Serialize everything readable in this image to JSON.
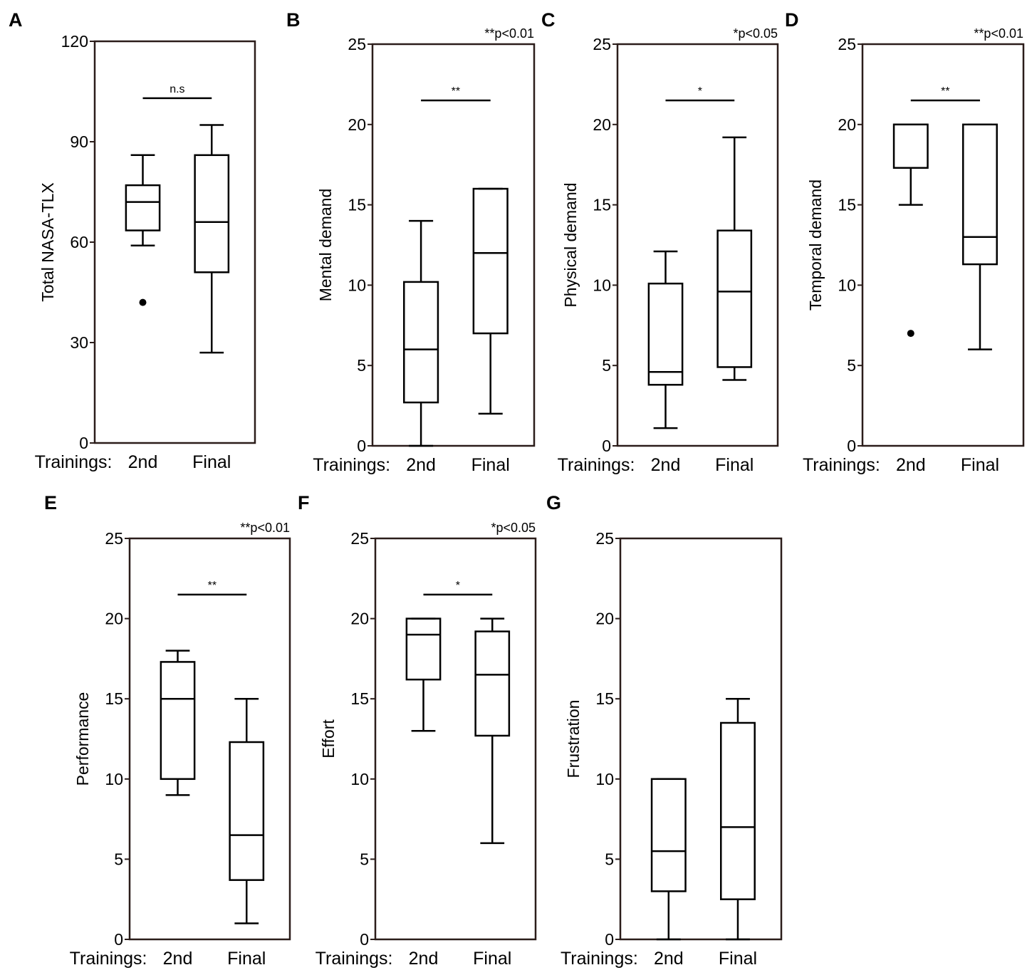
{
  "figure": {
    "x_prefix": "Trainings:",
    "groups": [
      "2nd",
      "Final"
    ]
  },
  "chart_data": [
    {
      "type": "box",
      "panel": "A",
      "ylabel": "Total NASA-TLX",
      "ylim": [
        0,
        120
      ],
      "yticks": [
        0,
        30,
        60,
        90,
        120
      ],
      "note": "",
      "sig": {
        "label": "n.s",
        "y": 103
      },
      "boxes": [
        {
          "name": "2nd",
          "min": 59,
          "q1": 63.5,
          "median": 72,
          "q3": 77,
          "max": 86,
          "outliers": [
            42
          ]
        },
        {
          "name": "Final",
          "min": 27,
          "q1": 51,
          "median": 66,
          "q3": 86,
          "max": 95,
          "outliers": []
        }
      ]
    },
    {
      "type": "box",
      "panel": "B",
      "ylabel": "Mental demand",
      "ylim": [
        0,
        25
      ],
      "yticks": [
        0,
        5,
        10,
        15,
        20,
        25
      ],
      "note": "**p<0.01",
      "sig": {
        "label": "**",
        "y": 21.5
      },
      "boxes": [
        {
          "name": "2nd",
          "min": 0,
          "q1": 2.7,
          "median": 6,
          "q3": 10.2,
          "max": 14,
          "outliers": []
        },
        {
          "name": "Final",
          "min": 2,
          "q1": 7,
          "median": 12,
          "q3": 16,
          "max": 16,
          "outliers": []
        }
      ]
    },
    {
      "type": "box",
      "panel": "C",
      "ylabel": "Physical demand",
      "ylim": [
        0,
        25
      ],
      "yticks": [
        0,
        5,
        10,
        15,
        20,
        25
      ],
      "note": "*p<0.05",
      "sig": {
        "label": "*",
        "y": 21.5
      },
      "boxes": [
        {
          "name": "2nd",
          "min": 1.1,
          "q1": 3.8,
          "median": 4.6,
          "q3": 10.1,
          "max": 12.1,
          "outliers": []
        },
        {
          "name": "Final",
          "min": 4.1,
          "q1": 4.9,
          "median": 9.6,
          "q3": 13.4,
          "max": 19.2,
          "outliers": []
        }
      ]
    },
    {
      "type": "box",
      "panel": "D",
      "ylabel": "Temporal demand",
      "ylim": [
        0,
        25
      ],
      "yticks": [
        0,
        5,
        10,
        15,
        20,
        25
      ],
      "note": "**p<0.01",
      "sig": {
        "label": "**",
        "y": 21.5
      },
      "boxes": [
        {
          "name": "2nd",
          "min": 15,
          "q1": 17.3,
          "median": 20,
          "q3": 20,
          "max": 20,
          "outliers": [
            7
          ]
        },
        {
          "name": "Final",
          "min": 6,
          "q1": 11.3,
          "median": 13,
          "q3": 20,
          "max": 20,
          "outliers": []
        }
      ]
    },
    {
      "type": "box",
      "panel": "E",
      "ylabel": "Performance",
      "ylim": [
        0,
        25
      ],
      "yticks": [
        0,
        5,
        10,
        15,
        20,
        25
      ],
      "note": "**p<0.01",
      "sig": {
        "label": "**",
        "y": 21.5
      },
      "boxes": [
        {
          "name": "2nd",
          "min": 9,
          "q1": 10,
          "median": 15,
          "q3": 17.3,
          "max": 18,
          "outliers": []
        },
        {
          "name": "Final",
          "min": 1,
          "q1": 3.7,
          "median": 6.5,
          "q3": 12.3,
          "max": 15,
          "outliers": []
        }
      ]
    },
    {
      "type": "box",
      "panel": "F",
      "ylabel": "Effort",
      "ylim": [
        0,
        25
      ],
      "yticks": [
        0,
        5,
        10,
        15,
        20,
        25
      ],
      "note": "*p<0.05",
      "sig": {
        "label": "*",
        "y": 21.5
      },
      "boxes": [
        {
          "name": "2nd",
          "min": 13,
          "q1": 16.2,
          "median": 19,
          "q3": 20,
          "max": 20,
          "outliers": []
        },
        {
          "name": "Final",
          "min": 6,
          "q1": 12.7,
          "median": 16.5,
          "q3": 19.2,
          "max": 20,
          "outliers": []
        }
      ]
    },
    {
      "type": "box",
      "panel": "G",
      "ylabel": "Frustration",
      "ylim": [
        0,
        25
      ],
      "yticks": [
        0,
        5,
        10,
        15,
        20,
        25
      ],
      "note": "",
      "sig": null,
      "boxes": [
        {
          "name": "2nd",
          "min": 0,
          "q1": 3,
          "median": 5.5,
          "q3": 10,
          "max": 10,
          "outliers": []
        },
        {
          "name": "Final",
          "min": 0,
          "q1": 2.5,
          "median": 7,
          "q3": 13.5,
          "max": 15,
          "outliers": []
        }
      ]
    }
  ]
}
